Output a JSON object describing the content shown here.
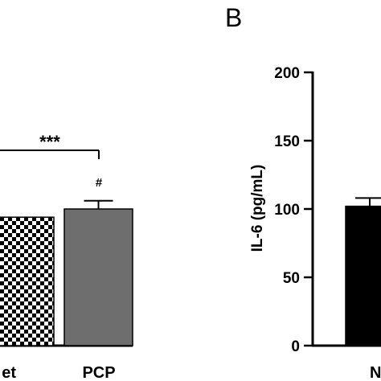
{
  "chart_data": [
    {
      "type": "bar",
      "panel_label": "",
      "categories": [
        "et",
        "PCP"
      ],
      "values": [
        94,
        100
      ],
      "errors": [
        0,
        6
      ],
      "ylim": [
        0,
        200
      ],
      "bar_colors": [
        "checkered",
        "#6e6e6e"
      ],
      "annotations": {
        "bracket_label": "***",
        "pcp_mark": "#"
      }
    },
    {
      "type": "bar",
      "panel_label": "B",
      "ylabel": "IL-6 (pg/mL)",
      "yticks": [
        "0",
        "50",
        "100",
        "150",
        "200"
      ],
      "ylim": [
        0,
        200
      ],
      "categories": [
        "N"
      ],
      "values": [
        102
      ],
      "errors": [
        6
      ],
      "bar_colors": [
        "#000000"
      ]
    }
  ]
}
